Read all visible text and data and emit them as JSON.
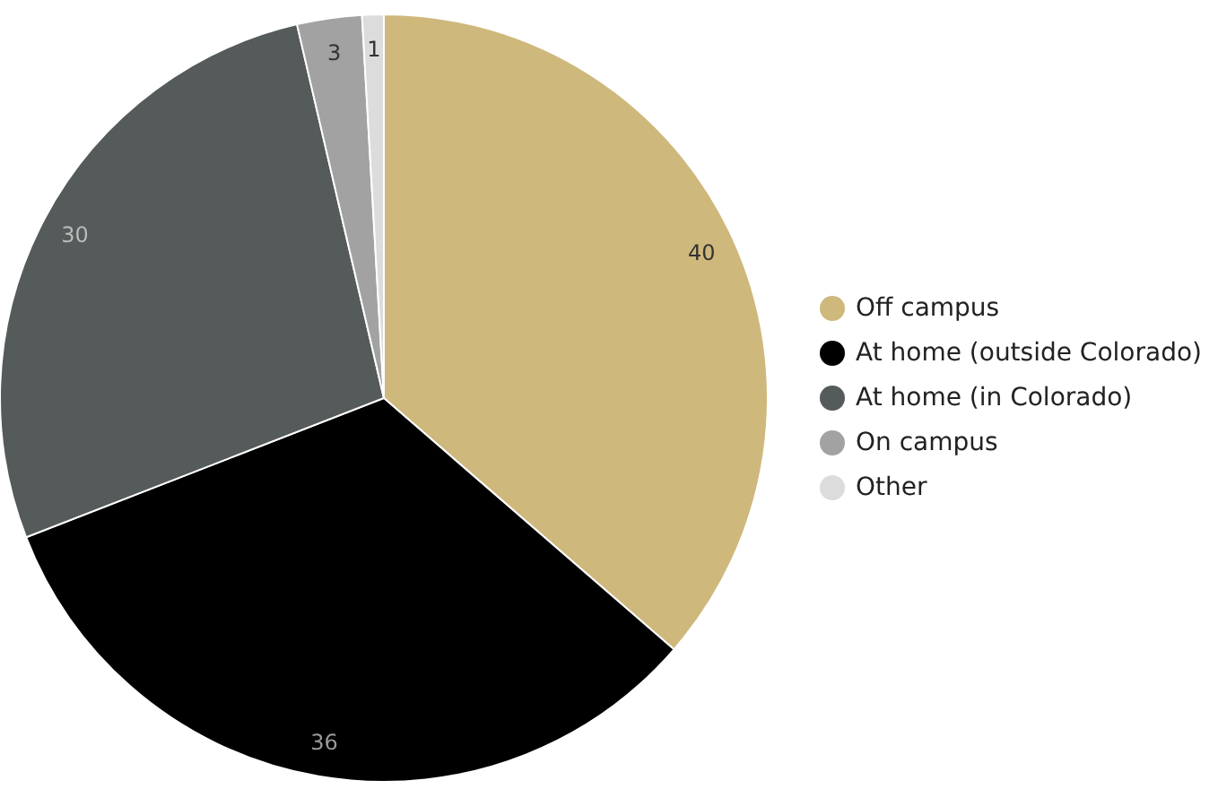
{
  "chart_data": {
    "type": "pie",
    "categories": [
      "Off campus",
      "At home (outside Colorado)",
      "At home (in Colorado)",
      "On campus",
      "Other"
    ],
    "values": [
      40,
      36,
      30,
      3,
      1
    ],
    "colors": [
      "#cfb87c",
      "#000000",
      "#555a5a",
      "#a2a2a2",
      "#dcdcdc"
    ],
    "data_labels": true,
    "legend": "right"
  }
}
